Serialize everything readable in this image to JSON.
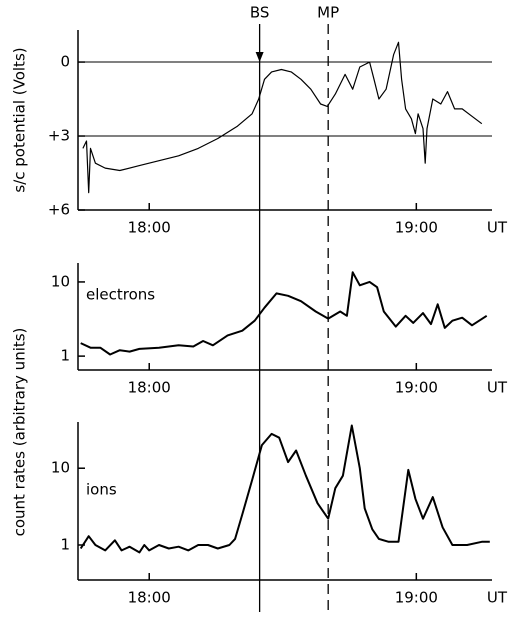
{
  "chart_data": [
    {
      "type": "line",
      "ylabel": "s/c potential (Volts)",
      "xlabel": "UT",
      "xlim": [
        1064,
        1157
      ],
      "xticks": [
        {
          "value": 1080,
          "label": "18:00"
        },
        {
          "value": 1140,
          "label": "19:00"
        }
      ],
      "ylim": [
        6,
        -1.3
      ],
      "yticks": [
        {
          "value": 6,
          "label": "+6"
        },
        {
          "value": 3,
          "label": "+3"
        },
        0
      ],
      "grid": true,
      "vlines": [
        {
          "label": "BS",
          "x": 1104.8,
          "style": "solid"
        },
        {
          "label": "MP",
          "x": 1120.2,
          "style": "dashed"
        }
      ],
      "series": [
        {
          "color": "#000000",
          "x": [
            1065.1,
            1065.9,
            1066.4,
            1066.8,
            1067.9,
            1070.1,
            1073.4,
            1077.8,
            1082.2,
            1086.6,
            1091.0,
            1095.4,
            1099.8,
            1103.1,
            1104.6,
            1105.9,
            1107.5,
            1109.7,
            1111.9,
            1114.1,
            1116.3,
            1118.5,
            1120.0,
            1121.8,
            1124.0,
            1125.7,
            1127.3,
            1129.5,
            1130.5,
            1131.6,
            1133.2,
            1134.9,
            1136.0,
            1136.7,
            1137.6,
            1138.9,
            1139.8,
            1140.4,
            1141.5,
            1142.0,
            1142.4,
            1143.7,
            1145.5,
            1147.0,
            1148.6,
            1150.3,
            1152.5,
            1154.7
          ],
          "values": [
            3.5,
            3.2,
            5.3,
            3.5,
            4.1,
            4.3,
            4.4,
            4.2,
            4.0,
            3.8,
            3.5,
            3.1,
            2.6,
            2.1,
            1.5,
            0.7,
            0.4,
            0.3,
            0.4,
            0.7,
            1.1,
            1.7,
            1.8,
            1.3,
            0.5,
            1.1,
            0.2,
            0.0,
            0.7,
            1.5,
            1.1,
            -0.3,
            -0.8,
            0.7,
            1.9,
            2.3,
            2.9,
            2.1,
            2.7,
            4.1,
            2.7,
            1.5,
            1.7,
            1.2,
            1.9,
            1.9,
            2.2,
            2.5
          ]
        }
      ]
    },
    {
      "type": "line",
      "ylabel": "count rates (arbitrary units)",
      "xlabel": "UT",
      "log_scale": true,
      "xlim": [
        1064,
        1157
      ],
      "xticks": [
        {
          "value": 1080,
          "label": "18:00"
        },
        {
          "value": 1140,
          "label": "19:00"
        }
      ],
      "ylim": [
        0.65,
        18
      ],
      "yticks": [
        1,
        10
      ],
      "series": [
        {
          "name": "electrons",
          "color": "#000000",
          "x": [
            1064.6,
            1066.8,
            1069.0,
            1071.2,
            1073.4,
            1075.6,
            1077.8,
            1082.2,
            1086.6,
            1089.9,
            1092.1,
            1094.3,
            1097.6,
            1100.9,
            1103.7,
            1105.9,
            1108.6,
            1111.2,
            1114.1,
            1117.4,
            1120.2,
            1122.9,
            1124.4,
            1125.7,
            1127.3,
            1129.5,
            1131.2,
            1132.7,
            1135.4,
            1137.6,
            1139.3,
            1141.5,
            1143.3,
            1144.8,
            1146.4,
            1148.1,
            1150.3,
            1152.5,
            1155.8
          ],
          "values": [
            1.5,
            1.3,
            1.3,
            1.05,
            1.2,
            1.15,
            1.25,
            1.3,
            1.4,
            1.35,
            1.6,
            1.4,
            1.9,
            2.2,
            3.0,
            4.5,
            7.0,
            6.5,
            5.5,
            4.0,
            3.2,
            4.0,
            3.5,
            13.5,
            9,
            10,
            8.5,
            4,
            2.5,
            3.5,
            2.8,
            3.8,
            2.7,
            5,
            2.4,
            3,
            3.3,
            2.6,
            3.5
          ]
        }
      ]
    },
    {
      "type": "line",
      "xlabel": "UT",
      "log_scale": true,
      "xlim": [
        1064,
        1157
      ],
      "xticks": [
        {
          "value": 1080,
          "label": "18:00"
        },
        {
          "value": 1140,
          "label": "19:00"
        }
      ],
      "ylim": [
        0.35,
        40
      ],
      "yticks": [
        1,
        10
      ],
      "series": [
        {
          "name": "ions",
          "color": "#000000",
          "x": [
            1064.6,
            1066.4,
            1067.9,
            1070.1,
            1072.3,
            1073.8,
            1075.6,
            1077.8,
            1078.9,
            1080,
            1082.2,
            1084.4,
            1086.6,
            1088.8,
            1091,
            1093.2,
            1095.4,
            1098,
            1099.3,
            1100.9,
            1103.1,
            1105.3,
            1107.5,
            1109.2,
            1111.2,
            1113,
            1115.2,
            1117.8,
            1120.2,
            1121.8,
            1123.5,
            1125.5,
            1127.3,
            1128.4,
            1130.1,
            1131.6,
            1133.8,
            1136,
            1138.2,
            1139.8,
            1141.5,
            1143.7,
            1145.9,
            1148.1,
            1151.4,
            1154.7,
            1156.5
          ],
          "values": [
            0.9,
            1.3,
            1.0,
            0.85,
            1.15,
            0.85,
            0.95,
            0.8,
            1.0,
            0.85,
            1.0,
            0.9,
            0.95,
            0.85,
            1.0,
            1.0,
            0.9,
            1.0,
            1.2,
            2.5,
            7,
            20,
            28,
            25,
            12,
            17,
            8,
            3.5,
            2.2,
            5.5,
            8,
            36,
            10,
            3,
            1.6,
            1.2,
            1.1,
            1.1,
            9.5,
            4,
            2.2,
            4.2,
            1.7,
            1.0,
            1.0,
            1.1,
            1.1
          ]
        }
      ]
    }
  ]
}
